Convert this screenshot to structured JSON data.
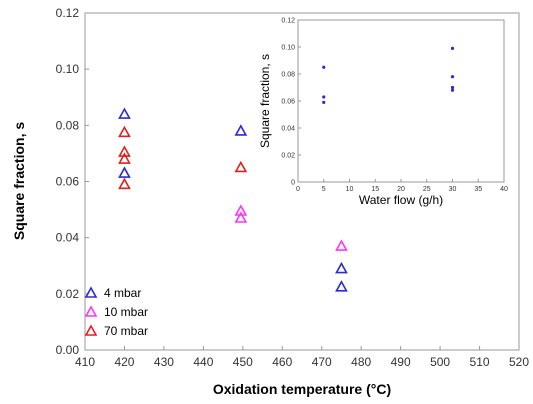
{
  "chart_data": [
    {
      "type": "scatter",
      "xlabel": "Oxidation temperature (°C)",
      "ylabel": "Square fraction, s",
      "xlim": [
        410,
        520
      ],
      "ylim": [
        0.0,
        0.12
      ],
      "xticks": [
        "410",
        "420",
        "430",
        "440",
        "450",
        "460",
        "470",
        "480",
        "490",
        "500",
        "510",
        "520"
      ],
      "yticks": [
        "0.00",
        "0.02",
        "0.04",
        "0.06",
        "0.08",
        "0.10",
        "0.12"
      ],
      "marker": "open-triangle",
      "legend_position": "bottom-left",
      "series": [
        {
          "name": "4 mbar",
          "color": "#2b2bd6",
          "points": [
            [
              420,
              0.084
            ],
            [
              420,
              0.063
            ],
            [
              449.5,
              0.078
            ],
            [
              475,
              0.029
            ],
            [
              475,
              0.0225
            ]
          ]
        },
        {
          "name": "10 mbar",
          "color": "#ff33ff",
          "points": [
            [
              449.5,
              0.0495
            ],
            [
              449.5,
              0.047
            ],
            [
              475,
              0.037
            ]
          ]
        },
        {
          "name": "70 mbar",
          "color": "#e02020",
          "points": [
            [
              420,
              0.0775
            ],
            [
              420,
              0.0705
            ],
            [
              420,
              0.068
            ],
            [
              420,
              0.059
            ],
            [
              449.5,
              0.065
            ]
          ]
        }
      ]
    },
    {
      "type": "scatter",
      "xlabel": "Water flow (g/h)",
      "ylabel": "Square fraction, s",
      "xlim": [
        0,
        40
      ],
      "ylim": [
        0.0,
        0.12
      ],
      "xticks": [
        "0",
        "5",
        "10",
        "15",
        "20",
        "25",
        "30",
        "35",
        "40"
      ],
      "yticks": [
        "0",
        "0.02",
        "0.04",
        "0.06",
        "0.08",
        "0.10",
        "0.12"
      ],
      "marker": "filled-dot",
      "series": [
        {
          "color": "#2b2bd6",
          "points": [
            [
              5,
              0.085
            ],
            [
              5,
              0.063
            ],
            [
              5,
              0.059
            ],
            [
              30,
              0.099
            ],
            [
              30,
              0.078
            ],
            [
              30,
              0.07
            ],
            [
              30,
              0.068
            ]
          ]
        }
      ]
    }
  ]
}
